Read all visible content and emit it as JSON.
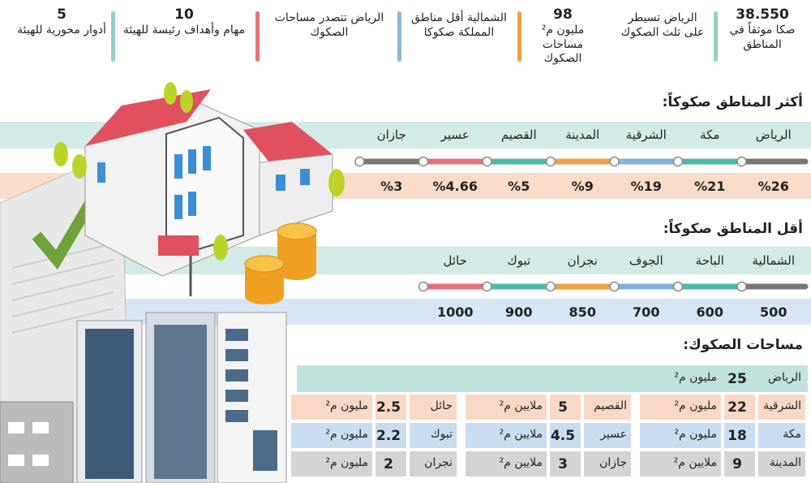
{
  "stats": [
    {
      "value": "38.550",
      "text": "صكا موثقاً في المناطق"
    },
    {
      "text": "الرياض تسيطر على ثلث الصكوك"
    },
    {
      "value": "98",
      "text": "مليون م² مساحات الصكوك"
    },
    {
      "text": "الشمالية أقل مناطق المملكة صكوكا"
    },
    {
      "text": "الرياض تتصدر مساحات الصكوك"
    },
    {
      "value": "10",
      "text": "مهام وأهداف رئيسة للهيئة"
    },
    {
      "value": "5",
      "text": "أدوار محورية للهيئة"
    }
  ],
  "most": {
    "title": "أكثر المناطق صكوكاً:",
    "regions": [
      "الرياض",
      "مكة",
      "الشرقية",
      "المدينة",
      "القصيم",
      "عسير",
      "جازان"
    ],
    "shares": [
      "%26",
      "%21",
      "%19",
      "%9",
      "%5",
      "%4.66",
      "%3"
    ]
  },
  "least": {
    "title": "أقل المناطق صكوكاً:",
    "regions": [
      "الشمالية",
      "الباحة",
      "الجوف",
      "نجران",
      "تبوك",
      "حائل"
    ],
    "counts": [
      500,
      600,
      700,
      850,
      900,
      1000
    ]
  },
  "areas": {
    "title": "مساحات الصكوك:",
    "rows": [
      [
        {
          "region": "الرياض",
          "value": "25",
          "unit": "مليون م²"
        }
      ],
      [
        {
          "region": "الشرقية",
          "value": "22",
          "unit": "مليون م²"
        },
        {
          "region": "القصيم",
          "value": "5",
          "unit": "ملايين م²"
        },
        {
          "region": "حائل",
          "value": "2.5",
          "unit": "مليون م²"
        }
      ],
      [
        {
          "region": "مكة",
          "value": "18",
          "unit": "مليون م²"
        },
        {
          "region": "عسير",
          "value": "4.5",
          "unit": "ملايين م²"
        },
        {
          "region": "تبوك",
          "value": "2.2",
          "unit": "مليون م²"
        }
      ],
      [
        {
          "region": "المدينة",
          "value": "9",
          "unit": "ملايين م²"
        },
        {
          "region": "جازان",
          "value": "3",
          "unit": "ملايين م²"
        },
        {
          "region": "نجران",
          "value": "2",
          "unit": "مليون م²"
        }
      ]
    ]
  }
}
